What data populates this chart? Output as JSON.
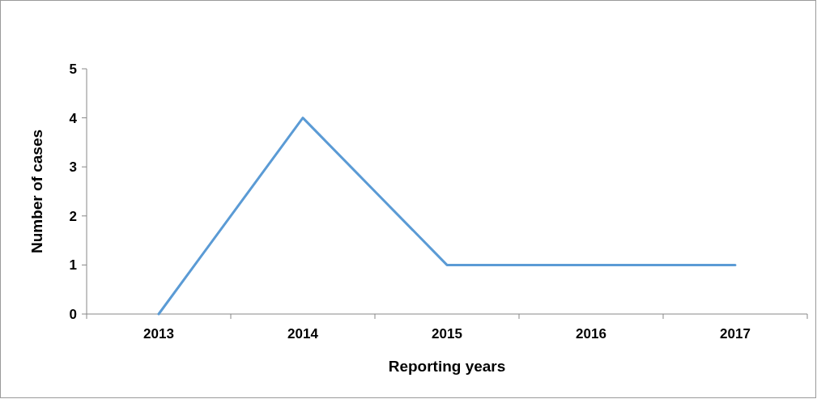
{
  "chart_data": {
    "type": "line",
    "xlabel": "Reporting years",
    "ylabel": "Number of cases",
    "categories": [
      "2013",
      "2014",
      "2015",
      "2016",
      "2017"
    ],
    "series": [
      {
        "color": "#5b9bd5",
        "values": [
          0,
          4,
          1,
          1,
          1
        ]
      }
    ],
    "ylim": [
      0,
      5
    ],
    "yticks": [
      0,
      1,
      2,
      3,
      4,
      5
    ],
    "grid": false,
    "marker": "none",
    "line_style": "solid"
  }
}
